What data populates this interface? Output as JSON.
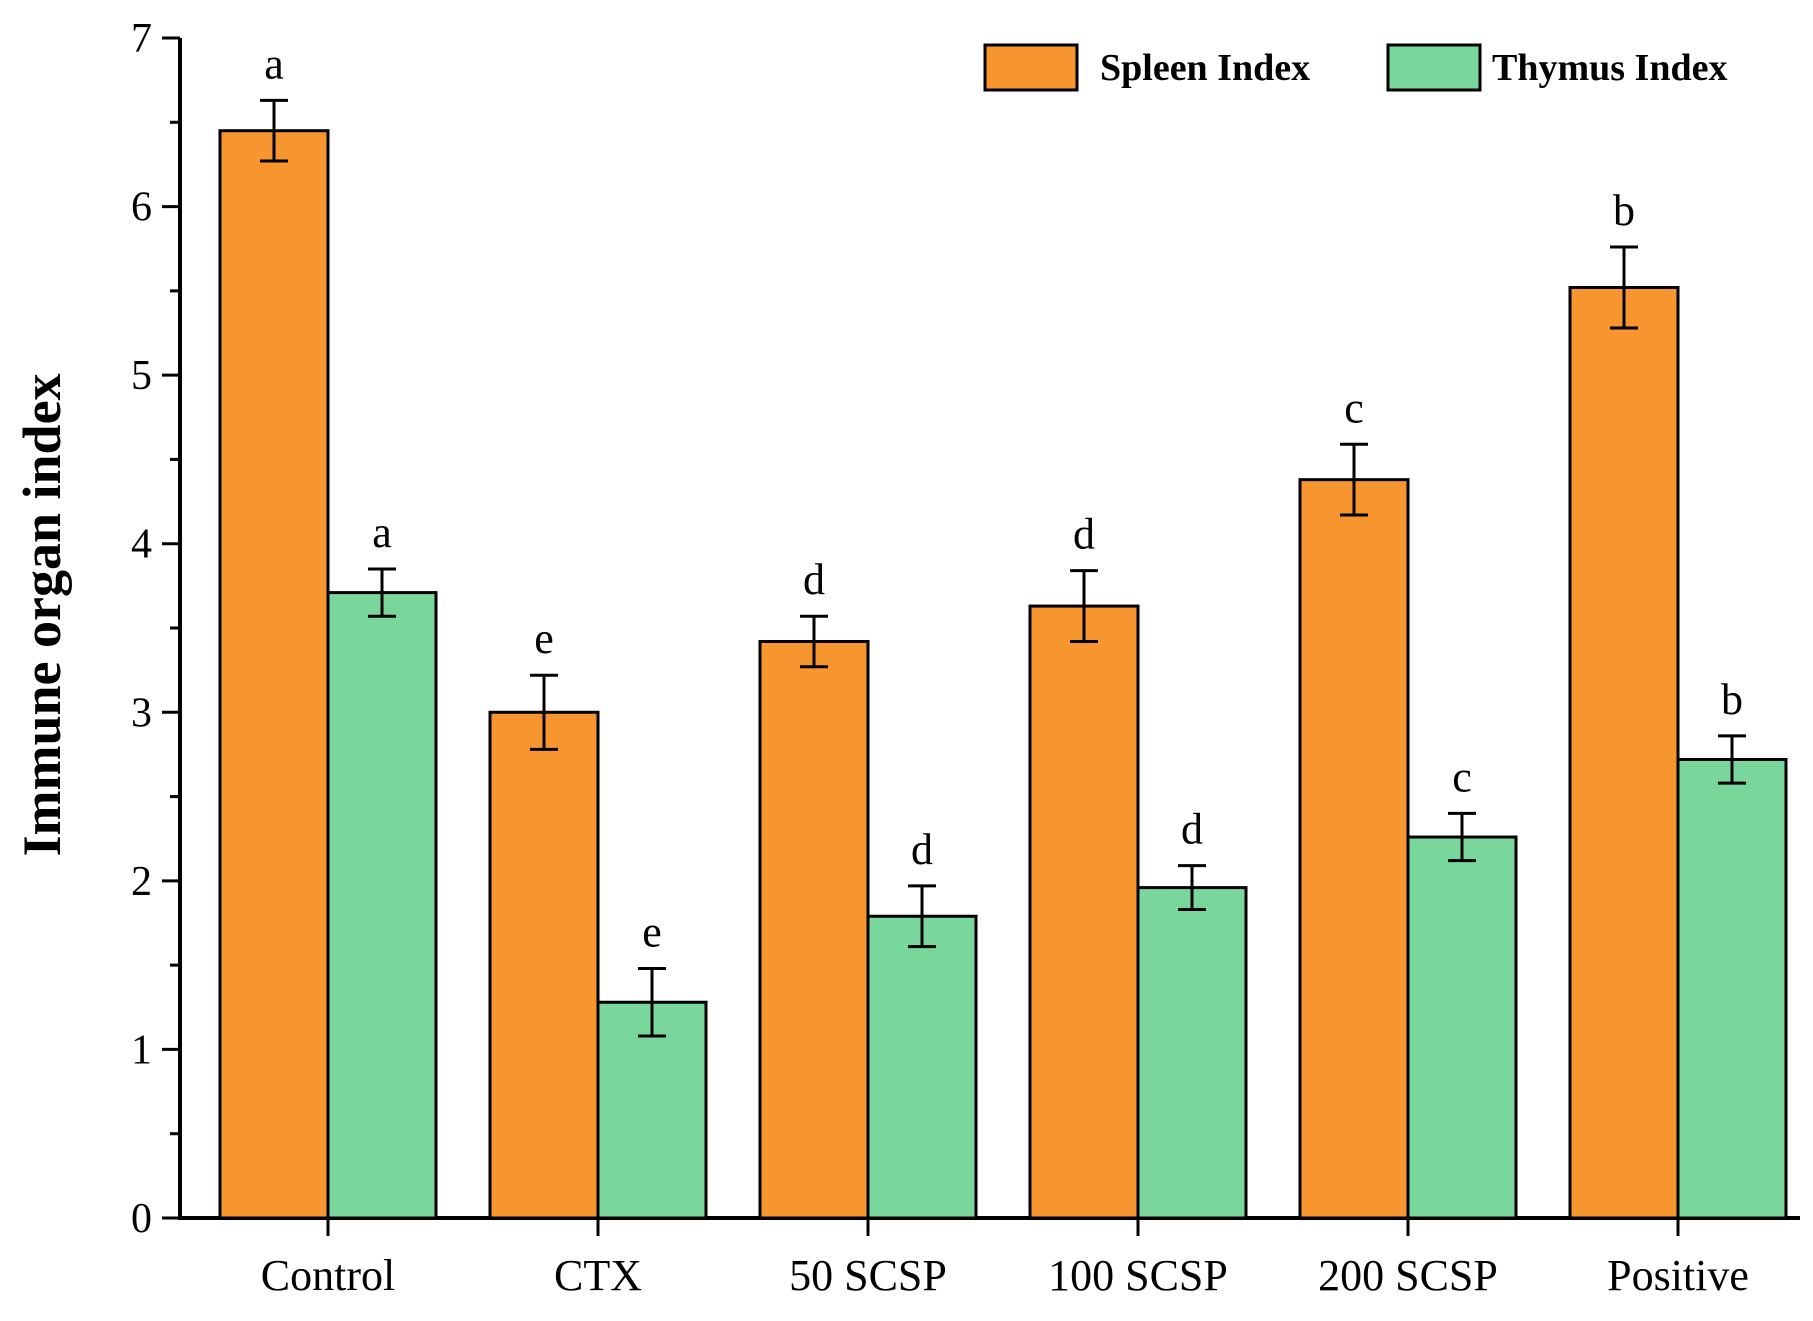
{
  "chart_data": {
    "type": "bar",
    "title": "",
    "xlabel": "",
    "ylabel": "Immune organ index",
    "ylim": [
      0,
      7
    ],
    "yticks": [
      "0",
      "1",
      "2",
      "3",
      "4",
      "5",
      "6",
      "7"
    ],
    "categories": [
      "Control",
      "CTX",
      "50 SCSP",
      "100 SCSP",
      "200 SCSP",
      "Positive"
    ],
    "legend_position": "top-right",
    "series": [
      {
        "name": "Spleen Index",
        "color": "#F7952F",
        "values": [
          6.45,
          3.0,
          3.42,
          3.63,
          4.38,
          5.52
        ],
        "errors": [
          0.18,
          0.22,
          0.15,
          0.21,
          0.21,
          0.24
        ],
        "labels": [
          "a",
          "e",
          "d",
          "d",
          "c",
          "b"
        ]
      },
      {
        "name": "Thymus Index",
        "color": "#7AD79B",
        "values": [
          3.71,
          1.28,
          1.79,
          1.96,
          2.26,
          2.72
        ],
        "errors": [
          0.14,
          0.2,
          0.18,
          0.13,
          0.14,
          0.14
        ],
        "labels": [
          "a",
          "e",
          "d",
          "d",
          "c",
          "b"
        ]
      }
    ]
  }
}
